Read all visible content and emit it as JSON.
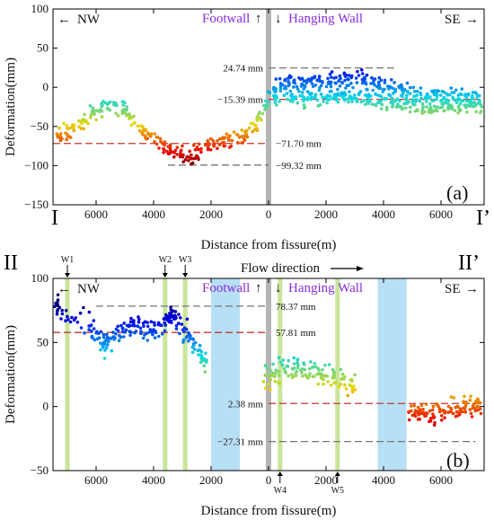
{
  "colors": {
    "footwall": "#8a2be2",
    "hanging_wall": "#8a2be2",
    "fissure_band": "#b5b5b5",
    "well_band": "#c9e59a",
    "flow_band": "#b7dff5",
    "red_dash": "#c0392b",
    "gray_dash": "#777777"
  },
  "chart_data": [
    {
      "type": "scatter",
      "panel_label": "(a)",
      "profile_start": "I",
      "profile_end": "I’",
      "direction_left": "NW",
      "direction_right": "SE",
      "footwall_label": "Footwall",
      "hanging_label": "Hanging Wall",
      "xlabel": "Distance from fissure(m)",
      "ylabel": "Deformation(mm)",
      "xlim": [
        -7500,
        7500
      ],
      "ylim": [
        -150,
        100
      ],
      "x_ticks": [
        {
          "v": -6000,
          "label": "6000"
        },
        {
          "v": -4000,
          "label": "4000"
        },
        {
          "v": -2000,
          "label": "2000"
        },
        {
          "v": 0,
          "label": "0"
        },
        {
          "v": 2000,
          "label": "2000"
        },
        {
          "v": 4000,
          "label": "4000"
        },
        {
          "v": 6000,
          "label": "6000"
        }
      ],
      "y_ticks": [
        -150,
        -100,
        -50,
        0,
        50,
        100
      ],
      "reference_lines": [
        {
          "value": 24.74,
          "label": "24.74 mm",
          "style": "gray",
          "x_range": [
            0,
            4500
          ]
        },
        {
          "value": -15.39,
          "label": "−15.39 mm",
          "style": "red",
          "x_range": [
            0,
            7500
          ]
        },
        {
          "value": -71.7,
          "label": "−71.70 mm",
          "style": "red",
          "x_range": [
            -7500,
            0
          ]
        },
        {
          "value": -99.32,
          "label": "−99.32 mm",
          "style": "gray",
          "x_range": [
            -3500,
            0
          ]
        }
      ],
      "series": [
        {
          "x": [
            -7400,
            -7000,
            -6600,
            -6200,
            -5800,
            -5400,
            -5000,
            -4600,
            -4200,
            -3800,
            -3400,
            -3000,
            -2600,
            -2200,
            -1800,
            -1400,
            -1000,
            -600,
            -200,
            200,
            600,
            1000,
            1400,
            1800,
            2200,
            2600,
            3000,
            3400,
            3800,
            4200,
            4600,
            5000,
            5400,
            5800,
            6200,
            6600,
            7000,
            7400
          ],
          "y": [
            -62,
            -58,
            -48,
            -35,
            -25,
            -20,
            -30,
            -45,
            -60,
            -70,
            -80,
            -90,
            -85,
            -72,
            -70,
            -70,
            -65,
            -55,
            -30,
            0,
            5,
            5,
            6,
            8,
            10,
            10,
            10,
            8,
            5,
            0,
            -5,
            -8,
            -10,
            -10,
            -12,
            -12,
            -14,
            -15
          ]
        },
        {
          "x": [
            200,
            600,
            1000,
            1400,
            1800,
            2200,
            2600,
            3000,
            3400,
            3800,
            4200,
            4600,
            5000,
            5400,
            5800,
            6200,
            6600,
            7000,
            7400
          ],
          "y": [
            -10,
            -12,
            -15,
            -15,
            -12,
            -10,
            -10,
            -12,
            -15,
            -18,
            -20,
            -22,
            -24,
            -25,
            -25,
            -25,
            -25,
            -25,
            -25
          ]
        }
      ]
    },
    {
      "type": "scatter",
      "panel_label": "(b)",
      "profile_start": "II",
      "profile_end": "II’",
      "direction_left": "NW",
      "direction_right": "SE",
      "footwall_label": "Footwall",
      "hanging_label": "Hanging Wall",
      "flow_label": "Flow direction",
      "xlabel": "Distance from fissure(m)",
      "ylabel": "Deformation(mm)",
      "xlim": [
        -7500,
        7500
      ],
      "ylim": [
        -50,
        100
      ],
      "x_ticks": [
        {
          "v": -6000,
          "label": "6000"
        },
        {
          "v": -4000,
          "label": "4000"
        },
        {
          "v": -2000,
          "label": "2000"
        },
        {
          "v": 0,
          "label": "0"
        },
        {
          "v": 2000,
          "label": "2000"
        },
        {
          "v": 4000,
          "label": "4000"
        },
        {
          "v": 6000,
          "label": "6000"
        }
      ],
      "y_ticks": [
        -50,
        0,
        50,
        100
      ],
      "wells": [
        {
          "name": "W1",
          "x": -7000,
          "side": "top"
        },
        {
          "name": "W2",
          "x": -3600,
          "side": "top"
        },
        {
          "name": "W3",
          "x": -2900,
          "side": "top"
        },
        {
          "name": "W4",
          "x": 400,
          "side": "bottom"
        },
        {
          "name": "W5",
          "x": 2400,
          "side": "bottom"
        }
      ],
      "flow_zones": [
        [
          -2000,
          -1000
        ],
        [
          3800,
          4800
        ]
      ],
      "reference_lines": [
        {
          "value": 78.37,
          "label": "78.37 mm",
          "style": "gray",
          "x_range": [
            -6000,
            0
          ]
        },
        {
          "value": 57.81,
          "label": "57.81 mm",
          "style": "red",
          "x_range": [
            -7500,
            0
          ]
        },
        {
          "value": 2.38,
          "label": "2.38 mm",
          "style": "red",
          "x_range": [
            0,
            7500
          ]
        },
        {
          "value": -27.31,
          "label": "−27.31 mm",
          "style": "gray",
          "x_range": [
            0,
            7200
          ]
        }
      ],
      "series": [
        {
          "x": [
            -7400,
            -7200,
            -6200,
            -5800,
            -5600,
            -5200,
            -4800,
            -4400,
            -4000,
            -3600,
            -3400,
            -3200,
            -2800,
            -2400,
            -2200
          ],
          "y": [
            80,
            75,
            62,
            50,
            48,
            60,
            65,
            60,
            58,
            65,
            70,
            68,
            55,
            40,
            35
          ]
        },
        {
          "x": [
            -200,
            200,
            600,
            1000,
            1400,
            1800,
            2200,
            2600,
            3000
          ],
          "y": [
            20,
            25,
            30,
            30,
            28,
            25,
            22,
            20,
            15
          ]
        },
        {
          "x": [
            4800,
            5200,
            5600,
            6000,
            6400,
            6800,
            7200,
            7400
          ],
          "y": [
            0,
            -5,
            -8,
            -5,
            -2,
            0,
            2,
            0
          ]
        }
      ]
    }
  ]
}
